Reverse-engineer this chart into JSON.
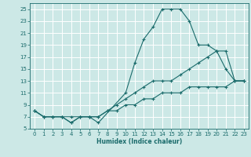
{
  "xlabel": "Humidex (Indice chaleur)",
  "bg_color": "#cce8e6",
  "line_color": "#1a6b6b",
  "grid_color": "#ffffff",
  "xlim": [
    -0.5,
    23.5
  ],
  "ylim": [
    5,
    26
  ],
  "yticks": [
    5,
    7,
    9,
    11,
    13,
    15,
    17,
    19,
    21,
    23,
    25
  ],
  "xticks": [
    0,
    1,
    2,
    3,
    4,
    5,
    6,
    7,
    8,
    9,
    10,
    11,
    12,
    13,
    14,
    15,
    16,
    17,
    18,
    19,
    20,
    21,
    22,
    23
  ],
  "line1_x": [
    0,
    1,
    2,
    3,
    4,
    5,
    6,
    7,
    10,
    11,
    12,
    13,
    14,
    15,
    16,
    17,
    18,
    19,
    20,
    21,
    22,
    23
  ],
  "line1_y": [
    8,
    7,
    7,
    7,
    6,
    7,
    7,
    6,
    11,
    16,
    20,
    22,
    25,
    25,
    25,
    23,
    19,
    19,
    18,
    15,
    13,
    13
  ],
  "line2_x": [
    0,
    1,
    2,
    3,
    4,
    5,
    6,
    7,
    8,
    9,
    10,
    11,
    12,
    13,
    14,
    15,
    16,
    17,
    18,
    19,
    20,
    21,
    22,
    23
  ],
  "line2_y": [
    8,
    7,
    7,
    7,
    7,
    7,
    7,
    7,
    8,
    9,
    10,
    11,
    12,
    13,
    13,
    13,
    14,
    15,
    16,
    17,
    18,
    18,
    13,
    13
  ],
  "line3_x": [
    0,
    1,
    2,
    3,
    4,
    5,
    6,
    7,
    8,
    9,
    10,
    11,
    12,
    13,
    14,
    15,
    16,
    17,
    18,
    19,
    20,
    21,
    22,
    23
  ],
  "line3_y": [
    8,
    7,
    7,
    7,
    6,
    7,
    7,
    7,
    8,
    8,
    9,
    9,
    10,
    10,
    11,
    11,
    11,
    12,
    12,
    12,
    12,
    12,
    13,
    13
  ]
}
